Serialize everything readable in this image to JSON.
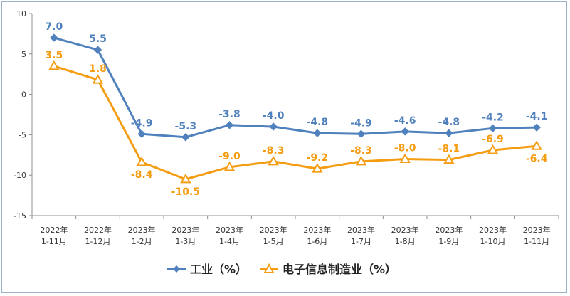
{
  "chart_data": {
    "type": "line",
    "categories": [
      [
        "2022年",
        "1-11月"
      ],
      [
        "2022年",
        "1-12月"
      ],
      [
        "2023年",
        "1-2月"
      ],
      [
        "2023年",
        "1-3月"
      ],
      [
        "2023年",
        "1-4月"
      ],
      [
        "2023年",
        "1-5月"
      ],
      [
        "2023年",
        "1-6月"
      ],
      [
        "2023年",
        "1-7月"
      ],
      [
        "2023年",
        "1-8月"
      ],
      [
        "2023年",
        "1-9月"
      ],
      [
        "2023年",
        "1-10月"
      ],
      [
        "2023年",
        "1-11月"
      ]
    ],
    "ylim": [
      -15,
      10
    ],
    "yticks": [
      10,
      5,
      0,
      -5,
      -10,
      -15
    ],
    "series": [
      {
        "name": "工业（%）",
        "marker": "diamond",
        "color": "#4f81bd",
        "values": [
          7.0,
          5.5,
          -4.9,
          -5.3,
          -3.8,
          -4.0,
          -4.8,
          -4.9,
          -4.6,
          -4.8,
          -4.2,
          -4.1
        ],
        "labels": [
          "7.0",
          "5.5",
          "-4.9",
          "-5.3",
          "-3.8",
          "-4.0",
          "-4.8",
          "-4.9",
          "-4.6",
          "-4.8",
          "-4.2",
          "-4.1"
        ]
      },
      {
        "name": "电子信息制造业（%）",
        "marker": "triangle",
        "color": "#f59d12",
        "values": [
          3.5,
          1.8,
          -8.4,
          -10.5,
          -9.0,
          -8.3,
          -9.2,
          -8.3,
          -8.0,
          -8.1,
          -6.9,
          -6.4
        ],
        "labels": [
          "3.5",
          "1.8",
          "-8.4",
          "-10.5",
          "-9.0",
          "-8.3",
          "-9.2",
          "-8.3",
          "-8.0",
          "-8.1",
          "-6.9",
          "-6.4"
        ]
      }
    ],
    "legend_position": "bottom-center"
  }
}
